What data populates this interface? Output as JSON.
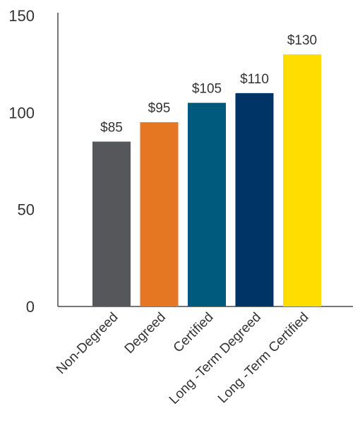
{
  "chart_data": {
    "type": "bar",
    "title": "",
    "xlabel": "",
    "ylabel": "",
    "ylim": [
      0,
      150
    ],
    "yticks": [
      0,
      50,
      100,
      150
    ],
    "ytick_labels": [
      "0",
      "50",
      "100",
      "150"
    ],
    "grid": false,
    "legend": "none",
    "categories": [
      "Non-Degreed",
      "Degreed",
      "Certified",
      "Long -Term Degreed",
      "Long -Term Certified"
    ],
    "values": [
      85,
      95,
      105,
      110,
      130
    ],
    "data_labels": [
      "$85",
      "$95",
      "$105",
      "$110",
      "$130"
    ],
    "colors": [
      "#55575a",
      "#e57722",
      "#005a7d",
      "#003366",
      "#ffdd00"
    ]
  }
}
